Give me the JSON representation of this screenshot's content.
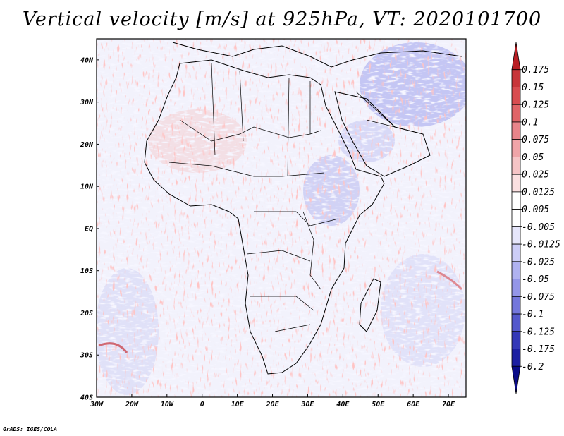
{
  "title": "Vertical velocity [m/s] at 925hPa, VT: 2020101700",
  "credit": "GrADS: IGES/COLA",
  "map": {
    "lon_range": [
      -30,
      75
    ],
    "lat_range": [
      -40,
      45
    ],
    "lon_ticks": [
      "30W",
      "20W",
      "10W",
      "0",
      "10E",
      "20E",
      "30E",
      "40E",
      "50E",
      "60E",
      "70E"
    ],
    "lat_ticks": [
      "40N",
      "30N",
      "20N",
      "10N",
      "EQ",
      "10S",
      "20S",
      "30S",
      "40S"
    ],
    "lon_values": [
      -30,
      -20,
      -10,
      0,
      10,
      20,
      30,
      40,
      50,
      60,
      70
    ],
    "lat_values": [
      40,
      30,
      20,
      10,
      0,
      -10,
      -20,
      -30,
      -40
    ]
  },
  "colorbar": {
    "levels": [
      "0.175",
      "0.15",
      "0.125",
      "0.1",
      "0.075",
      "0.05",
      "0.025",
      "0.0125",
      "0.005",
      "-0.005",
      "-0.0125",
      "-0.025",
      "-0.05",
      "-0.075",
      "-0.1",
      "-0.125",
      "-0.175",
      "-0.2"
    ],
    "colors": [
      "#b81e24",
      "#c8353a",
      "#d84c50",
      "#e06468",
      "#e8848a",
      "#f0a4a8",
      "#f6c4c6",
      "#fbe0e1",
      "#ffffff",
      "#ffffff",
      "#e6e6fb",
      "#cccdf7",
      "#b0b2f0",
      "#9496e8",
      "#7477dc",
      "#5458cc",
      "#3438b8",
      "#1c1fa2",
      "#0a0c88"
    ]
  }
}
